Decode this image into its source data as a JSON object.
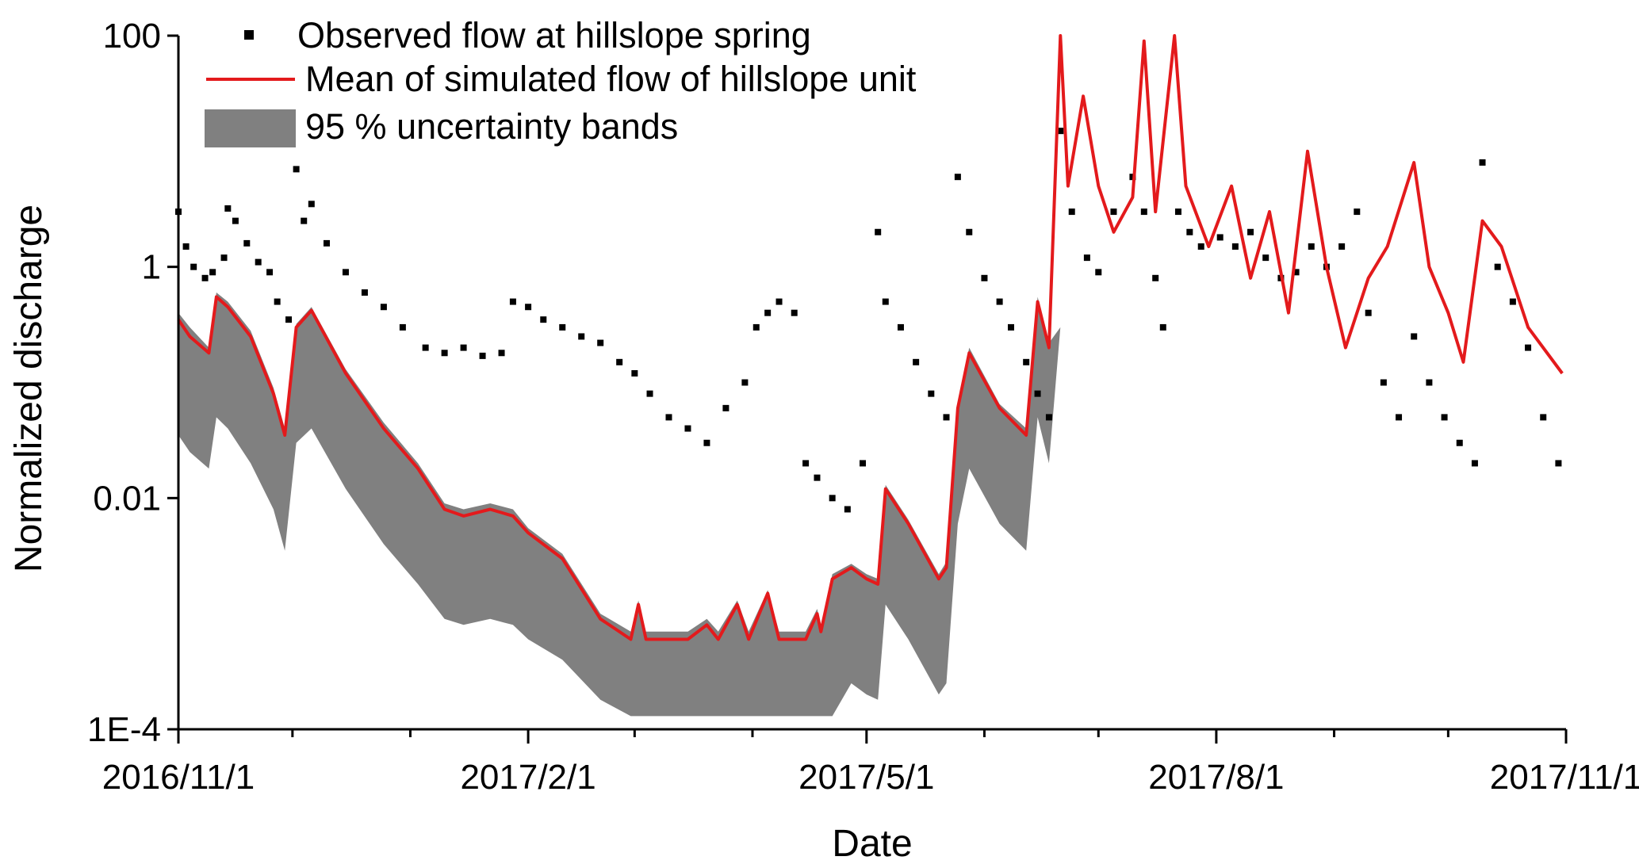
{
  "chart_data": {
    "type": "line",
    "xlabel": "Date",
    "ylabel": "Normalized discharge",
    "y_scale": "log",
    "ylim": [
      0.0001,
      100
    ],
    "xlim": [
      "2016-11-01",
      "2017-11-01"
    ],
    "y_ticks": [
      {
        "value": 0.0001,
        "label": "1E-4"
      },
      {
        "value": 0.01,
        "label": "0.01"
      },
      {
        "value": 1,
        "label": "1"
      },
      {
        "value": 100,
        "label": "100"
      }
    ],
    "x_ticks": [
      {
        "date": "2016-11-01",
        "label": "2016/11/1"
      },
      {
        "date": "2017-02-01",
        "label": "2017/2/1"
      },
      {
        "date": "2017-05-01",
        "label": "2017/5/1"
      },
      {
        "date": "2017-08-01",
        "label": "2017/8/1"
      },
      {
        "date": "2017-11-01",
        "label": "2017/11/1"
      }
    ],
    "x_minor_ticks": [
      "2016-12-01",
      "2017-01-01",
      "2017-03-01",
      "2017-04-01",
      "2017-06-01",
      "2017-07-01",
      "2017-09-01",
      "2017-10-01"
    ],
    "legend": {
      "position": "top-left",
      "entries": [
        {
          "name": "Observed flow at hillslope spring",
          "kind": "marker",
          "color": "#000000"
        },
        {
          "name": "Mean of simulated flow of hillslope unit",
          "kind": "line",
          "color": "#e31a1c"
        },
        {
          "name": "95 % uncertainty bands",
          "kind": "band",
          "color": "#808080"
        }
      ]
    },
    "series": [
      {
        "name": "Observed flow at hillslope spring",
        "kind": "scatter",
        "color": "#000000",
        "points": [
          [
            "2016-11-01",
            3
          ],
          [
            "2016-11-03",
            1.5
          ],
          [
            "2016-11-05",
            1
          ],
          [
            "2016-11-08",
            0.8
          ],
          [
            "2016-11-10",
            0.9
          ],
          [
            "2016-11-13",
            1.2
          ],
          [
            "2016-11-14",
            3.2
          ],
          [
            "2016-11-16",
            2.5
          ],
          [
            "2016-11-19",
            1.6
          ],
          [
            "2016-11-22",
            1.1
          ],
          [
            "2016-11-25",
            0.9
          ],
          [
            "2016-11-27",
            0.5
          ],
          [
            "2016-11-30",
            0.35
          ],
          [
            "2016-12-02",
            7
          ],
          [
            "2016-12-04",
            2.5
          ],
          [
            "2016-12-06",
            3.5
          ],
          [
            "2016-12-10",
            1.6
          ],
          [
            "2016-12-15",
            0.9
          ],
          [
            "2016-12-20",
            0.6
          ],
          [
            "2016-12-25",
            0.45
          ],
          [
            "2016-12-30",
            0.3
          ],
          [
            "2017-01-05",
            0.2
          ],
          [
            "2017-01-10",
            0.18
          ],
          [
            "2017-01-15",
            0.2
          ],
          [
            "2017-01-20",
            0.17
          ],
          [
            "2017-01-25",
            0.18
          ],
          [
            "2017-01-28",
            0.5
          ],
          [
            "2017-02-01",
            0.45
          ],
          [
            "2017-02-05",
            0.35
          ],
          [
            "2017-02-10",
            0.3
          ],
          [
            "2017-02-15",
            0.25
          ],
          [
            "2017-02-20",
            0.22
          ],
          [
            "2017-02-25",
            0.15
          ],
          [
            "2017-03-01",
            0.12
          ],
          [
            "2017-03-05",
            0.08
          ],
          [
            "2017-03-10",
            0.05
          ],
          [
            "2017-03-15",
            0.04
          ],
          [
            "2017-03-20",
            0.03
          ],
          [
            "2017-03-25",
            0.06
          ],
          [
            "2017-03-30",
            0.1
          ],
          [
            "2017-04-02",
            0.3
          ],
          [
            "2017-04-05",
            0.4
          ],
          [
            "2017-04-08",
            0.5
          ],
          [
            "2017-04-12",
            0.4
          ],
          [
            "2017-04-15",
            0.02
          ],
          [
            "2017-04-18",
            0.015
          ],
          [
            "2017-04-22",
            0.01
          ],
          [
            "2017-04-26",
            0.008
          ],
          [
            "2017-04-30",
            0.02
          ],
          [
            "2017-05-04",
            2
          ],
          [
            "2017-05-06",
            0.5
          ],
          [
            "2017-05-10",
            0.3
          ],
          [
            "2017-05-14",
            0.15
          ],
          [
            "2017-05-18",
            0.08
          ],
          [
            "2017-05-22",
            0.05
          ],
          [
            "2017-05-25",
            6
          ],
          [
            "2017-05-28",
            2
          ],
          [
            "2017-06-01",
            0.8
          ],
          [
            "2017-06-05",
            0.5
          ],
          [
            "2017-06-08",
            0.3
          ],
          [
            "2017-06-12",
            0.15
          ],
          [
            "2017-06-15",
            0.08
          ],
          [
            "2017-06-18",
            0.05
          ],
          [
            "2017-06-21",
            15
          ],
          [
            "2017-06-24",
            3
          ],
          [
            "2017-06-28",
            1.2
          ],
          [
            "2017-07-01",
            0.9
          ],
          [
            "2017-07-05",
            3
          ],
          [
            "2017-07-10",
            6
          ],
          [
            "2017-07-13",
            3
          ],
          [
            "2017-07-16",
            0.8
          ],
          [
            "2017-07-18",
            0.3
          ],
          [
            "2017-07-22",
            3
          ],
          [
            "2017-07-25",
            2
          ],
          [
            "2017-07-28",
            1.5
          ],
          [
            "2017-08-02",
            1.8
          ],
          [
            "2017-08-06",
            1.5
          ],
          [
            "2017-08-10",
            2
          ],
          [
            "2017-08-14",
            1.2
          ],
          [
            "2017-08-18",
            0.8
          ],
          [
            "2017-08-22",
            0.9
          ],
          [
            "2017-08-26",
            1.5
          ],
          [
            "2017-08-30",
            1
          ],
          [
            "2017-09-03",
            1.5
          ],
          [
            "2017-09-07",
            3
          ],
          [
            "2017-09-10",
            0.4
          ],
          [
            "2017-09-14",
            0.1
          ],
          [
            "2017-09-18",
            0.05
          ],
          [
            "2017-09-22",
            0.25
          ],
          [
            "2017-09-26",
            0.1
          ],
          [
            "2017-09-30",
            0.05
          ],
          [
            "2017-10-04",
            0.03
          ],
          [
            "2017-10-08",
            0.02
          ],
          [
            "2017-10-10",
            8
          ],
          [
            "2017-10-14",
            1
          ],
          [
            "2017-10-18",
            0.5
          ],
          [
            "2017-10-22",
            0.2
          ],
          [
            "2017-10-26",
            0.05
          ],
          [
            "2017-10-30",
            0.02
          ]
        ]
      },
      {
        "name": "Mean of simulated flow of hillslope unit",
        "kind": "line",
        "color": "#e31a1c",
        "points": [
          [
            "2016-11-01",
            0.35
          ],
          [
            "2016-11-04",
            0.25
          ],
          [
            "2016-11-09",
            0.18
          ],
          [
            "2016-11-11",
            0.55
          ],
          [
            "2016-11-14",
            0.45
          ],
          [
            "2016-11-20",
            0.25
          ],
          [
            "2016-11-26",
            0.08
          ],
          [
            "2016-11-29",
            0.035
          ],
          [
            "2016-12-02",
            0.3
          ],
          [
            "2016-12-06",
            0.42
          ],
          [
            "2016-12-15",
            0.12
          ],
          [
            "2016-12-25",
            0.04
          ],
          [
            "2017-01-03",
            0.018
          ],
          [
            "2017-01-10",
            0.008
          ],
          [
            "2017-01-15",
            0.007
          ],
          [
            "2017-01-22",
            0.008
          ],
          [
            "2017-01-28",
            0.007
          ],
          [
            "2017-02-01",
            0.005
          ],
          [
            "2017-02-10",
            0.003
          ],
          [
            "2017-02-20",
            0.0009
          ],
          [
            "2017-02-28",
            0.0006
          ],
          [
            "2017-03-02",
            0.0012
          ],
          [
            "2017-03-04",
            0.0006
          ],
          [
            "2017-03-15",
            0.0006
          ],
          [
            "2017-03-20",
            0.0008
          ],
          [
            "2017-03-23",
            0.0006
          ],
          [
            "2017-03-28",
            0.0012
          ],
          [
            "2017-03-31",
            0.0006
          ],
          [
            "2017-04-05",
            0.0015
          ],
          [
            "2017-04-08",
            0.0006
          ],
          [
            "2017-04-15",
            0.0006
          ],
          [
            "2017-04-18",
            0.001
          ],
          [
            "2017-04-19",
            0.0007
          ],
          [
            "2017-04-22",
            0.002
          ],
          [
            "2017-04-27",
            0.0025
          ],
          [
            "2017-05-01",
            0.002
          ],
          [
            "2017-05-04",
            0.0018
          ],
          [
            "2017-05-06",
            0.012
          ],
          [
            "2017-05-12",
            0.006
          ],
          [
            "2017-05-20",
            0.002
          ],
          [
            "2017-05-22",
            0.0025
          ],
          [
            "2017-05-25",
            0.06
          ],
          [
            "2017-05-28",
            0.18
          ],
          [
            "2017-06-05",
            0.06
          ],
          [
            "2017-06-12",
            0.035
          ],
          [
            "2017-06-15",
            0.5
          ],
          [
            "2017-06-18",
            0.2
          ],
          [
            "2017-06-21",
            100
          ],
          [
            "2017-06-23",
            5
          ],
          [
            "2017-06-27",
            30
          ],
          [
            "2017-07-01",
            5
          ],
          [
            "2017-07-05",
            2
          ],
          [
            "2017-07-10",
            4
          ],
          [
            "2017-07-13",
            90
          ],
          [
            "2017-07-16",
            3
          ],
          [
            "2017-07-21",
            100
          ],
          [
            "2017-07-24",
            5
          ],
          [
            "2017-07-30",
            1.5
          ],
          [
            "2017-08-05",
            5
          ],
          [
            "2017-08-10",
            0.8
          ],
          [
            "2017-08-15",
            3
          ],
          [
            "2017-08-20",
            0.4
          ],
          [
            "2017-08-25",
            10
          ],
          [
            "2017-08-30",
            1
          ],
          [
            "2017-09-04",
            0.2
          ],
          [
            "2017-09-10",
            0.8
          ],
          [
            "2017-09-15",
            1.5
          ],
          [
            "2017-09-22",
            8
          ],
          [
            "2017-09-26",
            1
          ],
          [
            "2017-10-01",
            0.4
          ],
          [
            "2017-10-05",
            0.15
          ],
          [
            "2017-10-10",
            2.5
          ],
          [
            "2017-10-15",
            1.5
          ],
          [
            "2017-10-22",
            0.3
          ],
          [
            "2017-10-31",
            0.12
          ]
        ]
      },
      {
        "name": "95 % uncertainty bands",
        "kind": "band",
        "color": "#808080",
        "upper": [
          [
            "2016-11-01",
            0.4
          ],
          [
            "2016-11-04",
            0.3
          ],
          [
            "2016-11-09",
            0.2
          ],
          [
            "2016-11-11",
            0.6
          ],
          [
            "2016-11-14",
            0.5
          ],
          [
            "2016-11-20",
            0.28
          ],
          [
            "2016-11-26",
            0.09
          ],
          [
            "2016-11-29",
            0.04
          ],
          [
            "2016-12-02",
            0.32
          ],
          [
            "2016-12-06",
            0.45
          ],
          [
            "2016-12-15",
            0.13
          ],
          [
            "2016-12-25",
            0.045
          ],
          [
            "2017-01-03",
            0.02
          ],
          [
            "2017-01-10",
            0.009
          ],
          [
            "2017-01-15",
            0.008
          ],
          [
            "2017-01-22",
            0.009
          ],
          [
            "2017-01-28",
            0.008
          ],
          [
            "2017-02-01",
            0.0055
          ],
          [
            "2017-02-10",
            0.0033
          ],
          [
            "2017-02-20",
            0.001
          ],
          [
            "2017-02-28",
            0.0007
          ],
          [
            "2017-03-02",
            0.0013
          ],
          [
            "2017-03-04",
            0.0007
          ],
          [
            "2017-03-15",
            0.0007
          ],
          [
            "2017-03-20",
            0.0009
          ],
          [
            "2017-03-23",
            0.0007
          ],
          [
            "2017-03-28",
            0.0013
          ],
          [
            "2017-03-31",
            0.0007
          ],
          [
            "2017-04-05",
            0.0016
          ],
          [
            "2017-04-08",
            0.0007
          ],
          [
            "2017-04-15",
            0.0007
          ],
          [
            "2017-04-18",
            0.0011
          ],
          [
            "2017-04-19",
            0.0008
          ],
          [
            "2017-04-22",
            0.0022
          ],
          [
            "2017-04-27",
            0.0027
          ],
          [
            "2017-05-01",
            0.0022
          ],
          [
            "2017-05-04",
            0.002
          ],
          [
            "2017-05-06",
            0.013
          ],
          [
            "2017-05-12",
            0.0065
          ],
          [
            "2017-05-20",
            0.0022
          ],
          [
            "2017-05-22",
            0.0028
          ],
          [
            "2017-05-25",
            0.065
          ],
          [
            "2017-05-28",
            0.2
          ],
          [
            "2017-06-05",
            0.065
          ],
          [
            "2017-06-12",
            0.04
          ],
          [
            "2017-06-15",
            0.55
          ],
          [
            "2017-06-18",
            0.22
          ],
          [
            "2017-06-21",
            0.3
          ]
        ],
        "lower": [
          [
            "2016-11-01",
            0.035
          ],
          [
            "2016-11-04",
            0.025
          ],
          [
            "2016-11-09",
            0.018
          ],
          [
            "2016-11-11",
            0.05
          ],
          [
            "2016-11-14",
            0.04
          ],
          [
            "2016-11-20",
            0.02
          ],
          [
            "2016-11-26",
            0.008
          ],
          [
            "2016-11-29",
            0.0035
          ],
          [
            "2016-12-02",
            0.03
          ],
          [
            "2016-12-06",
            0.04
          ],
          [
            "2016-12-15",
            0.012
          ],
          [
            "2016-12-25",
            0.004
          ],
          [
            "2017-01-03",
            0.0018
          ],
          [
            "2017-01-10",
            0.0009
          ],
          [
            "2017-01-15",
            0.0008
          ],
          [
            "2017-01-22",
            0.0009
          ],
          [
            "2017-01-28",
            0.0008
          ],
          [
            "2017-02-01",
            0.0006
          ],
          [
            "2017-02-10",
            0.0004
          ],
          [
            "2017-02-20",
            0.00018
          ],
          [
            "2017-02-28",
            0.00013
          ],
          [
            "2017-03-15",
            0.00013
          ],
          [
            "2017-04-15",
            0.00013
          ],
          [
            "2017-04-22",
            0.00013
          ],
          [
            "2017-04-27",
            0.00025
          ],
          [
            "2017-05-01",
            0.0002
          ],
          [
            "2017-05-04",
            0.00018
          ],
          [
            "2017-05-06",
            0.0012
          ],
          [
            "2017-05-12",
            0.0006
          ],
          [
            "2017-05-20",
            0.0002
          ],
          [
            "2017-05-22",
            0.00025
          ],
          [
            "2017-05-25",
            0.006
          ],
          [
            "2017-05-28",
            0.018
          ],
          [
            "2017-06-05",
            0.006
          ],
          [
            "2017-06-12",
            0.0035
          ],
          [
            "2017-06-15",
            0.05
          ],
          [
            "2017-06-18",
            0.02
          ],
          [
            "2017-06-21",
            0.3
          ]
        ]
      }
    ]
  }
}
